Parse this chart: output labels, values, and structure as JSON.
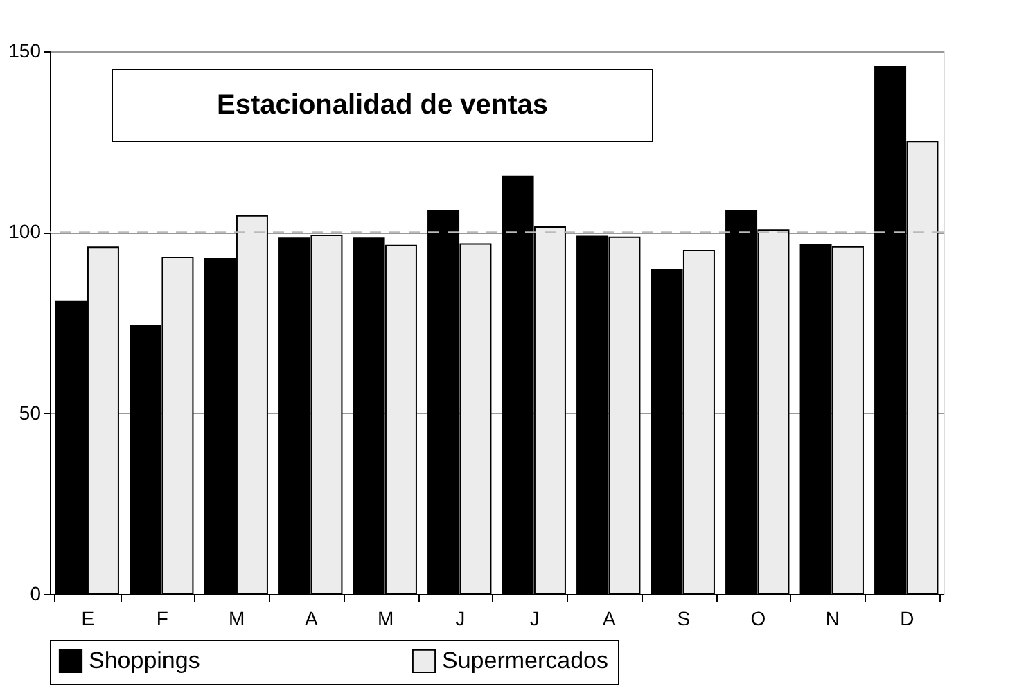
{
  "chart_data": {
    "type": "bar",
    "title": "Estacionalidad de ventas",
    "categories": [
      "E",
      "F",
      "M",
      "A",
      "M",
      "J",
      "J",
      "A",
      "S",
      "O",
      "N",
      "D"
    ],
    "series": [
      {
        "name": "Shoppings",
        "color": "#000000",
        "values": [
          80.8,
          74.1,
          92.6,
          98.3,
          98.3,
          105.8,
          115.4,
          98.8,
          89.6,
          106.0,
          96.5,
          145.8
        ]
      },
      {
        "name": "Supermercados",
        "color": "#ececec",
        "values": [
          95.8,
          93.0,
          104.5,
          99.1,
          96.3,
          96.7,
          101.4,
          98.6,
          94.9,
          100.6,
          95.9,
          125.1
        ]
      }
    ],
    "ylim": [
      0,
      150
    ],
    "yticks": [
      0,
      50,
      100,
      150
    ],
    "grid": true,
    "legend": "bottom",
    "ref_lines": [
      {
        "axis": "y",
        "value": 100,
        "color": "#bbbbbb",
        "line_style": "dashed"
      }
    ]
  }
}
